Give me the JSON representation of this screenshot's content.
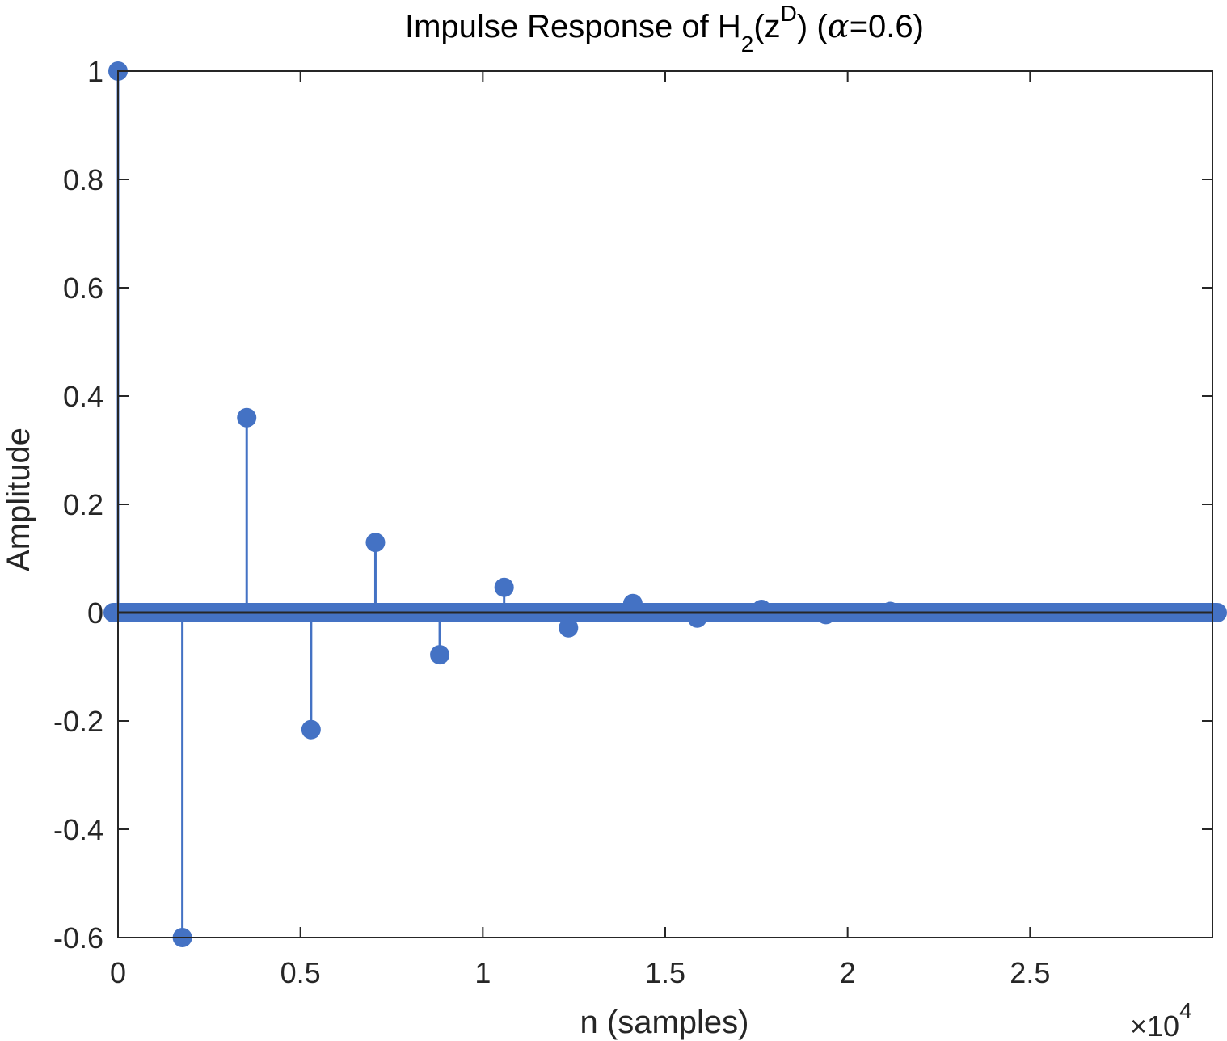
{
  "chart_data": {
    "type": "stem",
    "title": {
      "prefix": "Impulse Response of H",
      "sub": "2",
      "mid": "(z",
      "sup": "D",
      "suffix": ") (",
      "greek": "α",
      "tail": "=0.6)"
    },
    "xlabel": "n (samples)",
    "ylabel": "Amplitude",
    "x_exponent": {
      "base": "×10",
      "exp": "4"
    },
    "xlim": [
      0,
      3
    ],
    "ylim": [
      -0.6,
      1
    ],
    "xticks": [
      0,
      0.5,
      1,
      1.5,
      2,
      2.5
    ],
    "xtick_labels": [
      "0",
      "0.5",
      "1",
      "1.5",
      "2",
      "2.5"
    ],
    "yticks": [
      -0.6,
      -0.4,
      -0.2,
      0,
      0.2,
      0.4,
      0.6,
      0.8,
      1
    ],
    "ytick_labels": [
      "-0.6",
      "-0.4",
      "-0.2",
      "0",
      "0.2",
      "0.4",
      "0.6",
      "0.8",
      "1"
    ],
    "x_scale_factor": 10000,
    "x_unit_note": "x values are in units of 10^4 samples",
    "series": [
      {
        "x": [
          0,
          0.1764,
          0.3528,
          0.5292,
          0.7056,
          0.882,
          1.0584,
          1.2348,
          1.4112,
          1.5876,
          1.764,
          1.9404,
          2.1168
        ],
        "values": [
          1,
          -0.6,
          0.36,
          -0.216,
          0.1296,
          -0.0778,
          0.0467,
          -0.028,
          0.0168,
          -0.0101,
          0.006,
          -0.0036,
          0.0022
        ]
      }
    ],
    "zero_sample_range": [
      0,
      3
    ],
    "color": "#4472c4",
    "grid": false
  }
}
